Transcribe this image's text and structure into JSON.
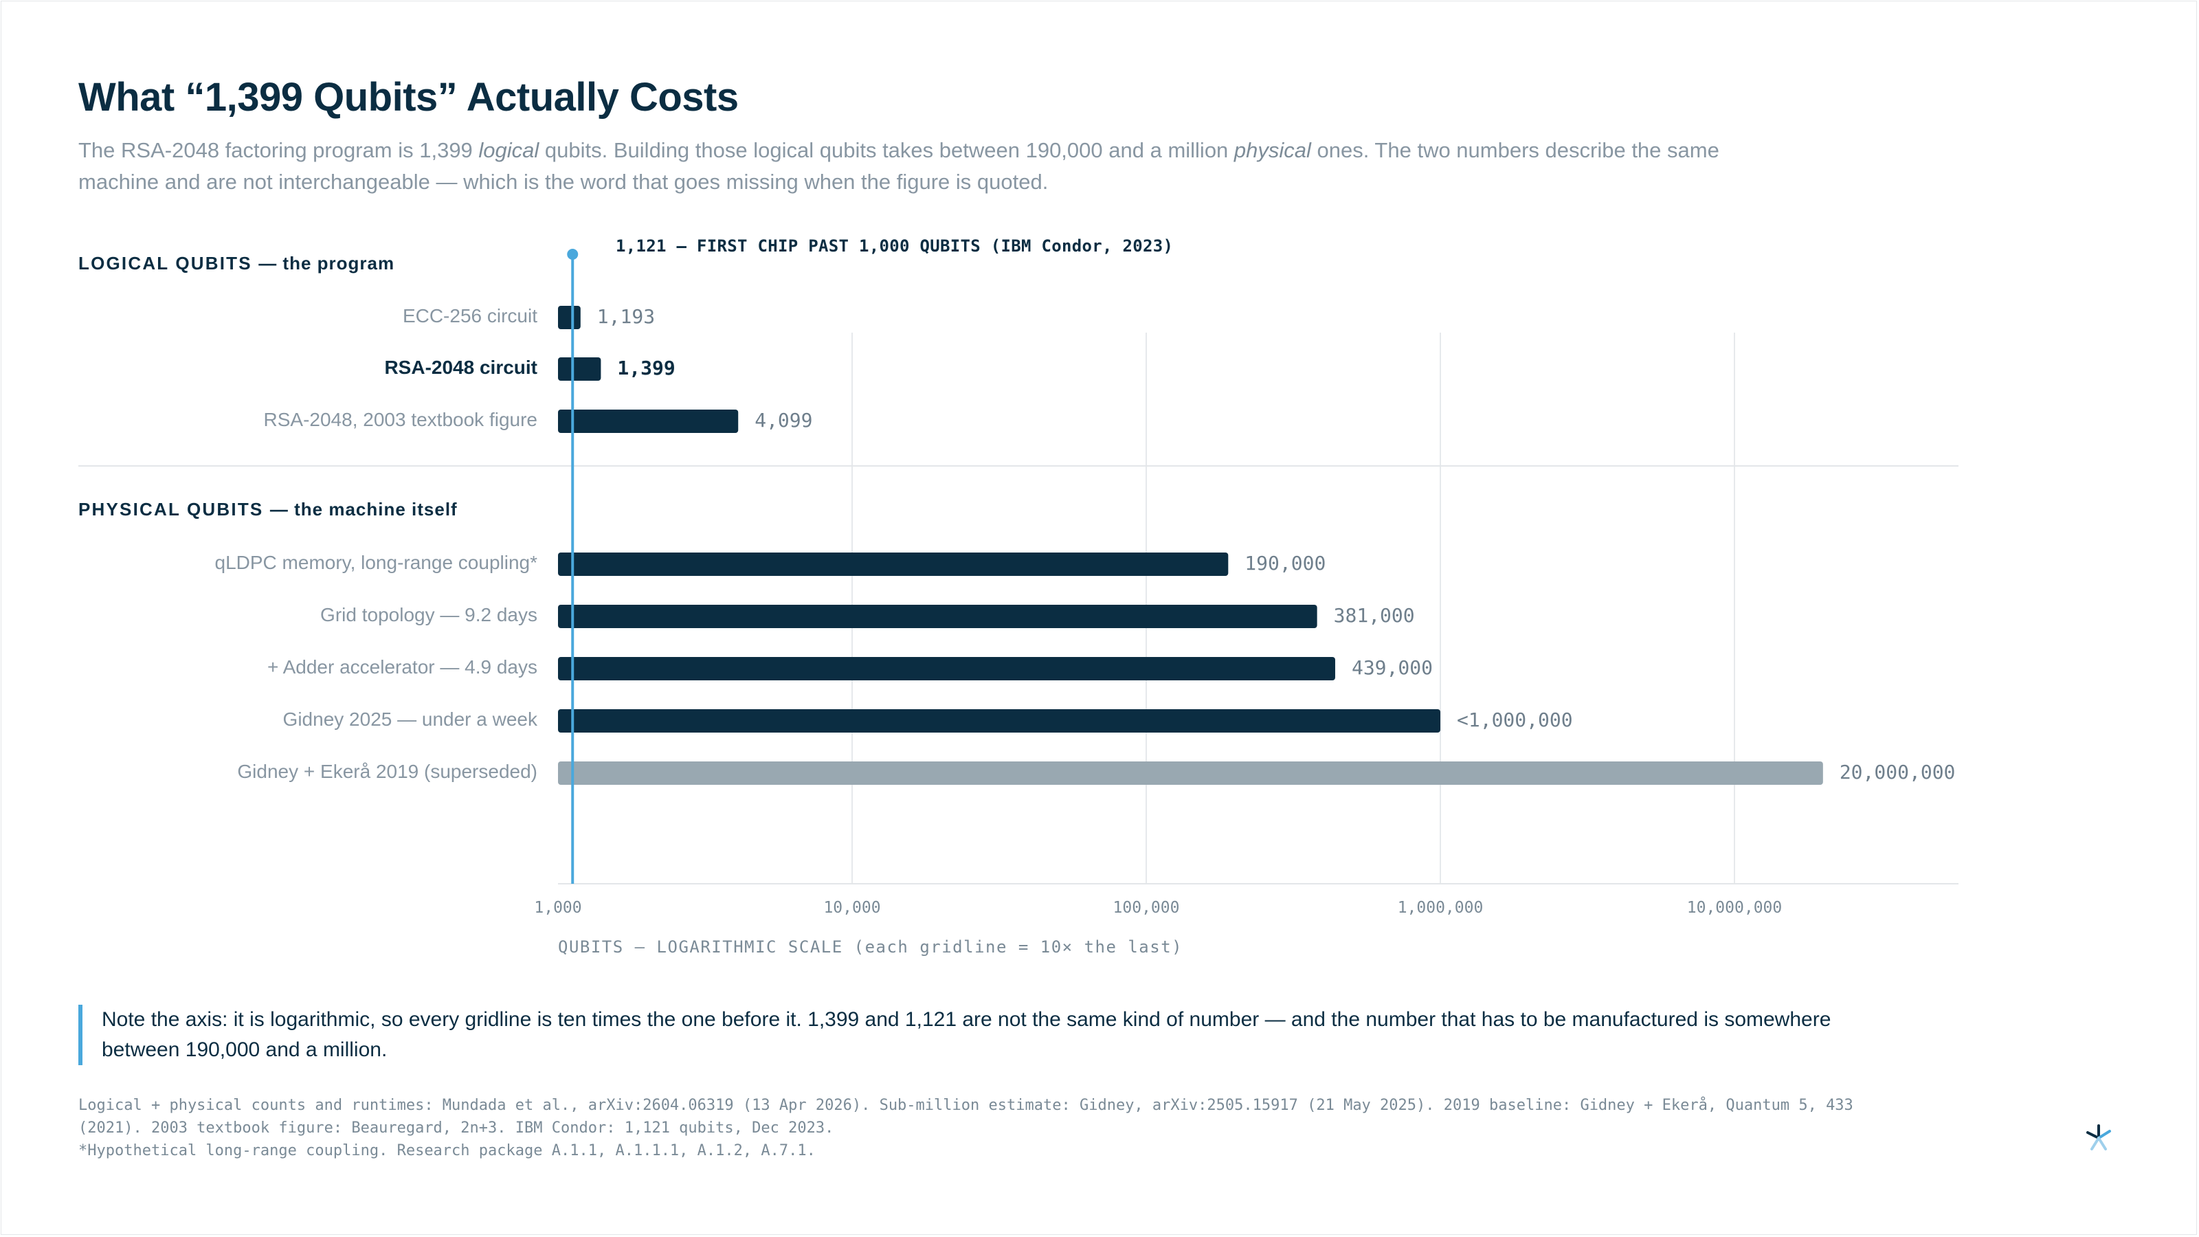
{
  "header": {
    "title": "What “1,399 Qubits” Actually Costs",
    "subtitle_parts": [
      "The RSA-2048 factoring program is 1,399 ",
      "logical",
      " qubits. Building those logical qubits takes between 190,000 and a million ",
      "physical",
      " ones. The two numbers describe the same machine and are not interchangeable — which is the word that goes missing when the figure is quoted."
    ]
  },
  "chart_data": {
    "type": "bar",
    "orientation": "horizontal",
    "x_scale": "log",
    "xlim": [
      1000,
      40000000
    ],
    "grid": true,
    "xlabel": "QUBITS — LOGARITHMIC SCALE (each gridline = 10× the last)",
    "ticks": [
      {
        "value": 1000,
        "label": "1,000"
      },
      {
        "value": 10000,
        "label": "10,000"
      },
      {
        "value": 100000,
        "label": "100,000"
      },
      {
        "value": 1000000,
        "label": "1,000,000"
      },
      {
        "value": 10000000,
        "label": "10,000,000"
      }
    ],
    "groups": [
      {
        "title": "LOGICAL QUBITS",
        "subtitle": "— the program",
        "bars": [
          {
            "label": "ECC-256 circuit",
            "value": 1193,
            "value_label": "1,193",
            "highlight": false,
            "color": "#0b2d42"
          },
          {
            "label": "RSA-2048 circuit",
            "value": 1399,
            "value_label": "1,399",
            "highlight": true,
            "color": "#0b2d42"
          },
          {
            "label": "RSA-2048, 2003 textbook figure",
            "value": 4099,
            "value_label": "4,099",
            "highlight": false,
            "color": "#0b2d42"
          }
        ]
      },
      {
        "title": "PHYSICAL QUBITS",
        "subtitle": "— the machine itself",
        "bars": [
          {
            "label": "qLDPC memory, long-range coupling*",
            "value": 190000,
            "value_label": "190,000",
            "highlight": false,
            "color": "#0b2d42"
          },
          {
            "label": "Grid topology — 9.2 days",
            "value": 381000,
            "value_label": "381,000",
            "highlight": false,
            "color": "#0b2d42"
          },
          {
            "label": "+ Adder accelerator — 4.9 days",
            "value": 439000,
            "value_label": "439,000",
            "highlight": false,
            "color": "#0b2d42"
          },
          {
            "label": "Gidney 2025 — under a week",
            "value": 1000000,
            "value_label": "<1,000,000",
            "highlight": false,
            "color": "#0b2d42"
          },
          {
            "label": "Gidney + Ekerå 2019 (superseded)",
            "value": 20000000,
            "value_label": "20,000,000",
            "highlight": false,
            "color": "#99a8b1"
          }
        ]
      }
    ],
    "reference_line": {
      "value": 1121,
      "label": "1,121 — FIRST CHIP PAST 1,000 QUBITS (IBM Condor, 2023)",
      "color": "#4aa8dc"
    }
  },
  "note": "Note the axis: it is logarithmic, so every gridline is ten times the one before it. 1,399 and 1,121 are not the same kind of number — and the number that has to be manufactured is somewhere between 190,000 and a million.",
  "sources": [
    "Logical + physical counts and runtimes: Mundada et al., arXiv:2604.06319 (13 Apr 2026). Sub-million estimate: Gidney, arXiv:2505.15917 (21 May 2025). 2019 baseline: Gidney + Ekerå, Quantum 5, 433",
    "(2021). 2003 textbook figure: Beauregard, 2n+3. IBM Condor: 1,121 qubits, Dec 2023.",
    "*Hypothetical long-range coupling. Research package A.1.1, A.1.1.1, A.1.2, A.7.1."
  ],
  "colors": {
    "accent": "#4aa8dc",
    "bar": "#0b2d42",
    "bar_muted": "#99a8b1",
    "grid": "#e6e9ec"
  },
  "logo_icon": "asterisk-logo-icon"
}
